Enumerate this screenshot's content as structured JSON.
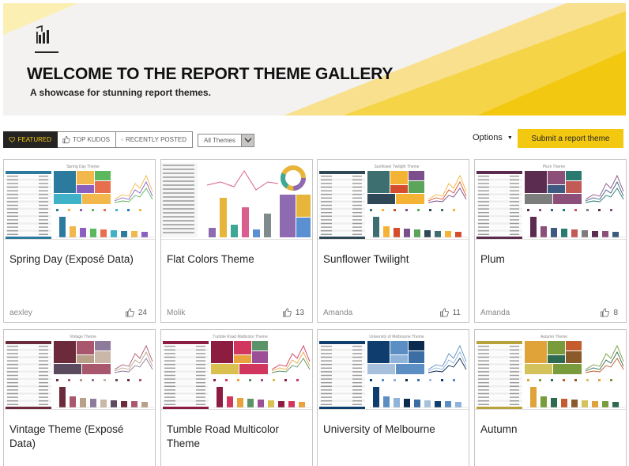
{
  "banner": {
    "title": "WELCOME TO THE REPORT THEME GALLERY",
    "subtitle": "A showcase for stunning report themes.",
    "logo_icon": "power-bi-logo-icon",
    "stripe_colors": [
      "#fcefb4",
      "#f8e08e",
      "#f5d547",
      "#f2c811"
    ]
  },
  "toolbar": {
    "tabs": [
      {
        "label": "FEATURED",
        "icon": "heart-icon",
        "active": true
      },
      {
        "label": "TOP KUDOS",
        "icon": "thumbs-up-icon",
        "active": false
      },
      {
        "label": "RECENTLY POSTED",
        "icon": "clock-icon",
        "active": false
      }
    ],
    "filter": {
      "value": "All Themes"
    },
    "options_label": "Options",
    "submit_label": "Submit a report theme"
  },
  "cards": [
    {
      "title": "Spring Day (Exposé Data)",
      "author": "aexley",
      "likes": "24",
      "thumb_title": "Spring Day Theme",
      "palette": [
        "#2c7a9e",
        "#f2b84b",
        "#8b5fbf",
        "#5cb85c",
        "#e86f4d",
        "#3fb2c7"
      ],
      "header_color": "#2c7a9e",
      "style": "table"
    },
    {
      "title": "Flat Colors Theme",
      "author": "Molik",
      "likes": "13",
      "thumb_title": "",
      "palette": [
        "#8e6bb0",
        "#e7b53a",
        "#3fa796",
        "#d9608e",
        "#5a8fd1",
        "#7f8c8d"
      ],
      "header_color": "#7f8c8d",
      "style": "flat"
    },
    {
      "title": "Sunflower Twilight",
      "author": "Amanda",
      "likes": "11",
      "thumb_title": "Sunflower Twilight Theme",
      "palette": [
        "#3d6e70",
        "#f5b335",
        "#d44d2c",
        "#7a4f8b",
        "#5aa55a",
        "#2f4858"
      ],
      "header_color": "#2f4858",
      "style": "table"
    },
    {
      "title": "Plum",
      "author": "Amanda",
      "likes": "8",
      "thumb_title": "Plum Theme",
      "palette": [
        "#5b2c4f",
        "#8c4f7a",
        "#3d5a80",
        "#2a7a6f",
        "#c25b56",
        "#7d7d7d"
      ],
      "header_color": "#5b2c4f",
      "style": "table"
    },
    {
      "title": "Vintage Theme (Exposé Data)",
      "author": "",
      "likes": "",
      "thumb_title": "Vintage Theme",
      "palette": [
        "#6b2b3a",
        "#a8576d",
        "#b8a089",
        "#8e7a9b",
        "#c9b7a7",
        "#5c4a5e"
      ],
      "header_color": "#6b2b3a",
      "style": "table"
    },
    {
      "title": "Tumble Road Multicolor Theme",
      "author": "",
      "likes": "",
      "thumb_title": "Tumble Road Multicolor Theme",
      "palette": [
        "#8c1d40",
        "#d1365f",
        "#e8a33d",
        "#5a9367",
        "#9c4f96",
        "#d9c04f"
      ],
      "header_color": "#8c1d40",
      "style": "table"
    },
    {
      "title": "University of Melbourne",
      "author": "",
      "likes": "",
      "thumb_title": "University of Melbourne Theme",
      "palette": [
        "#0f3d6e",
        "#5b8ec2",
        "#8fb3d9",
        "#0a2a50",
        "#3a6ea5",
        "#a7c1dd"
      ],
      "header_color": "#0f3d6e",
      "style": "table"
    },
    {
      "title": "Autumn",
      "author": "",
      "likes": "",
      "thumb_title": "Autumn Theme",
      "palette": [
        "#e0a33a",
        "#7a9b3c",
        "#2d6a4f",
        "#c45c2e",
        "#8a5a2b",
        "#d4c35a"
      ],
      "header_color": "#b8a23a",
      "style": "table"
    }
  ]
}
